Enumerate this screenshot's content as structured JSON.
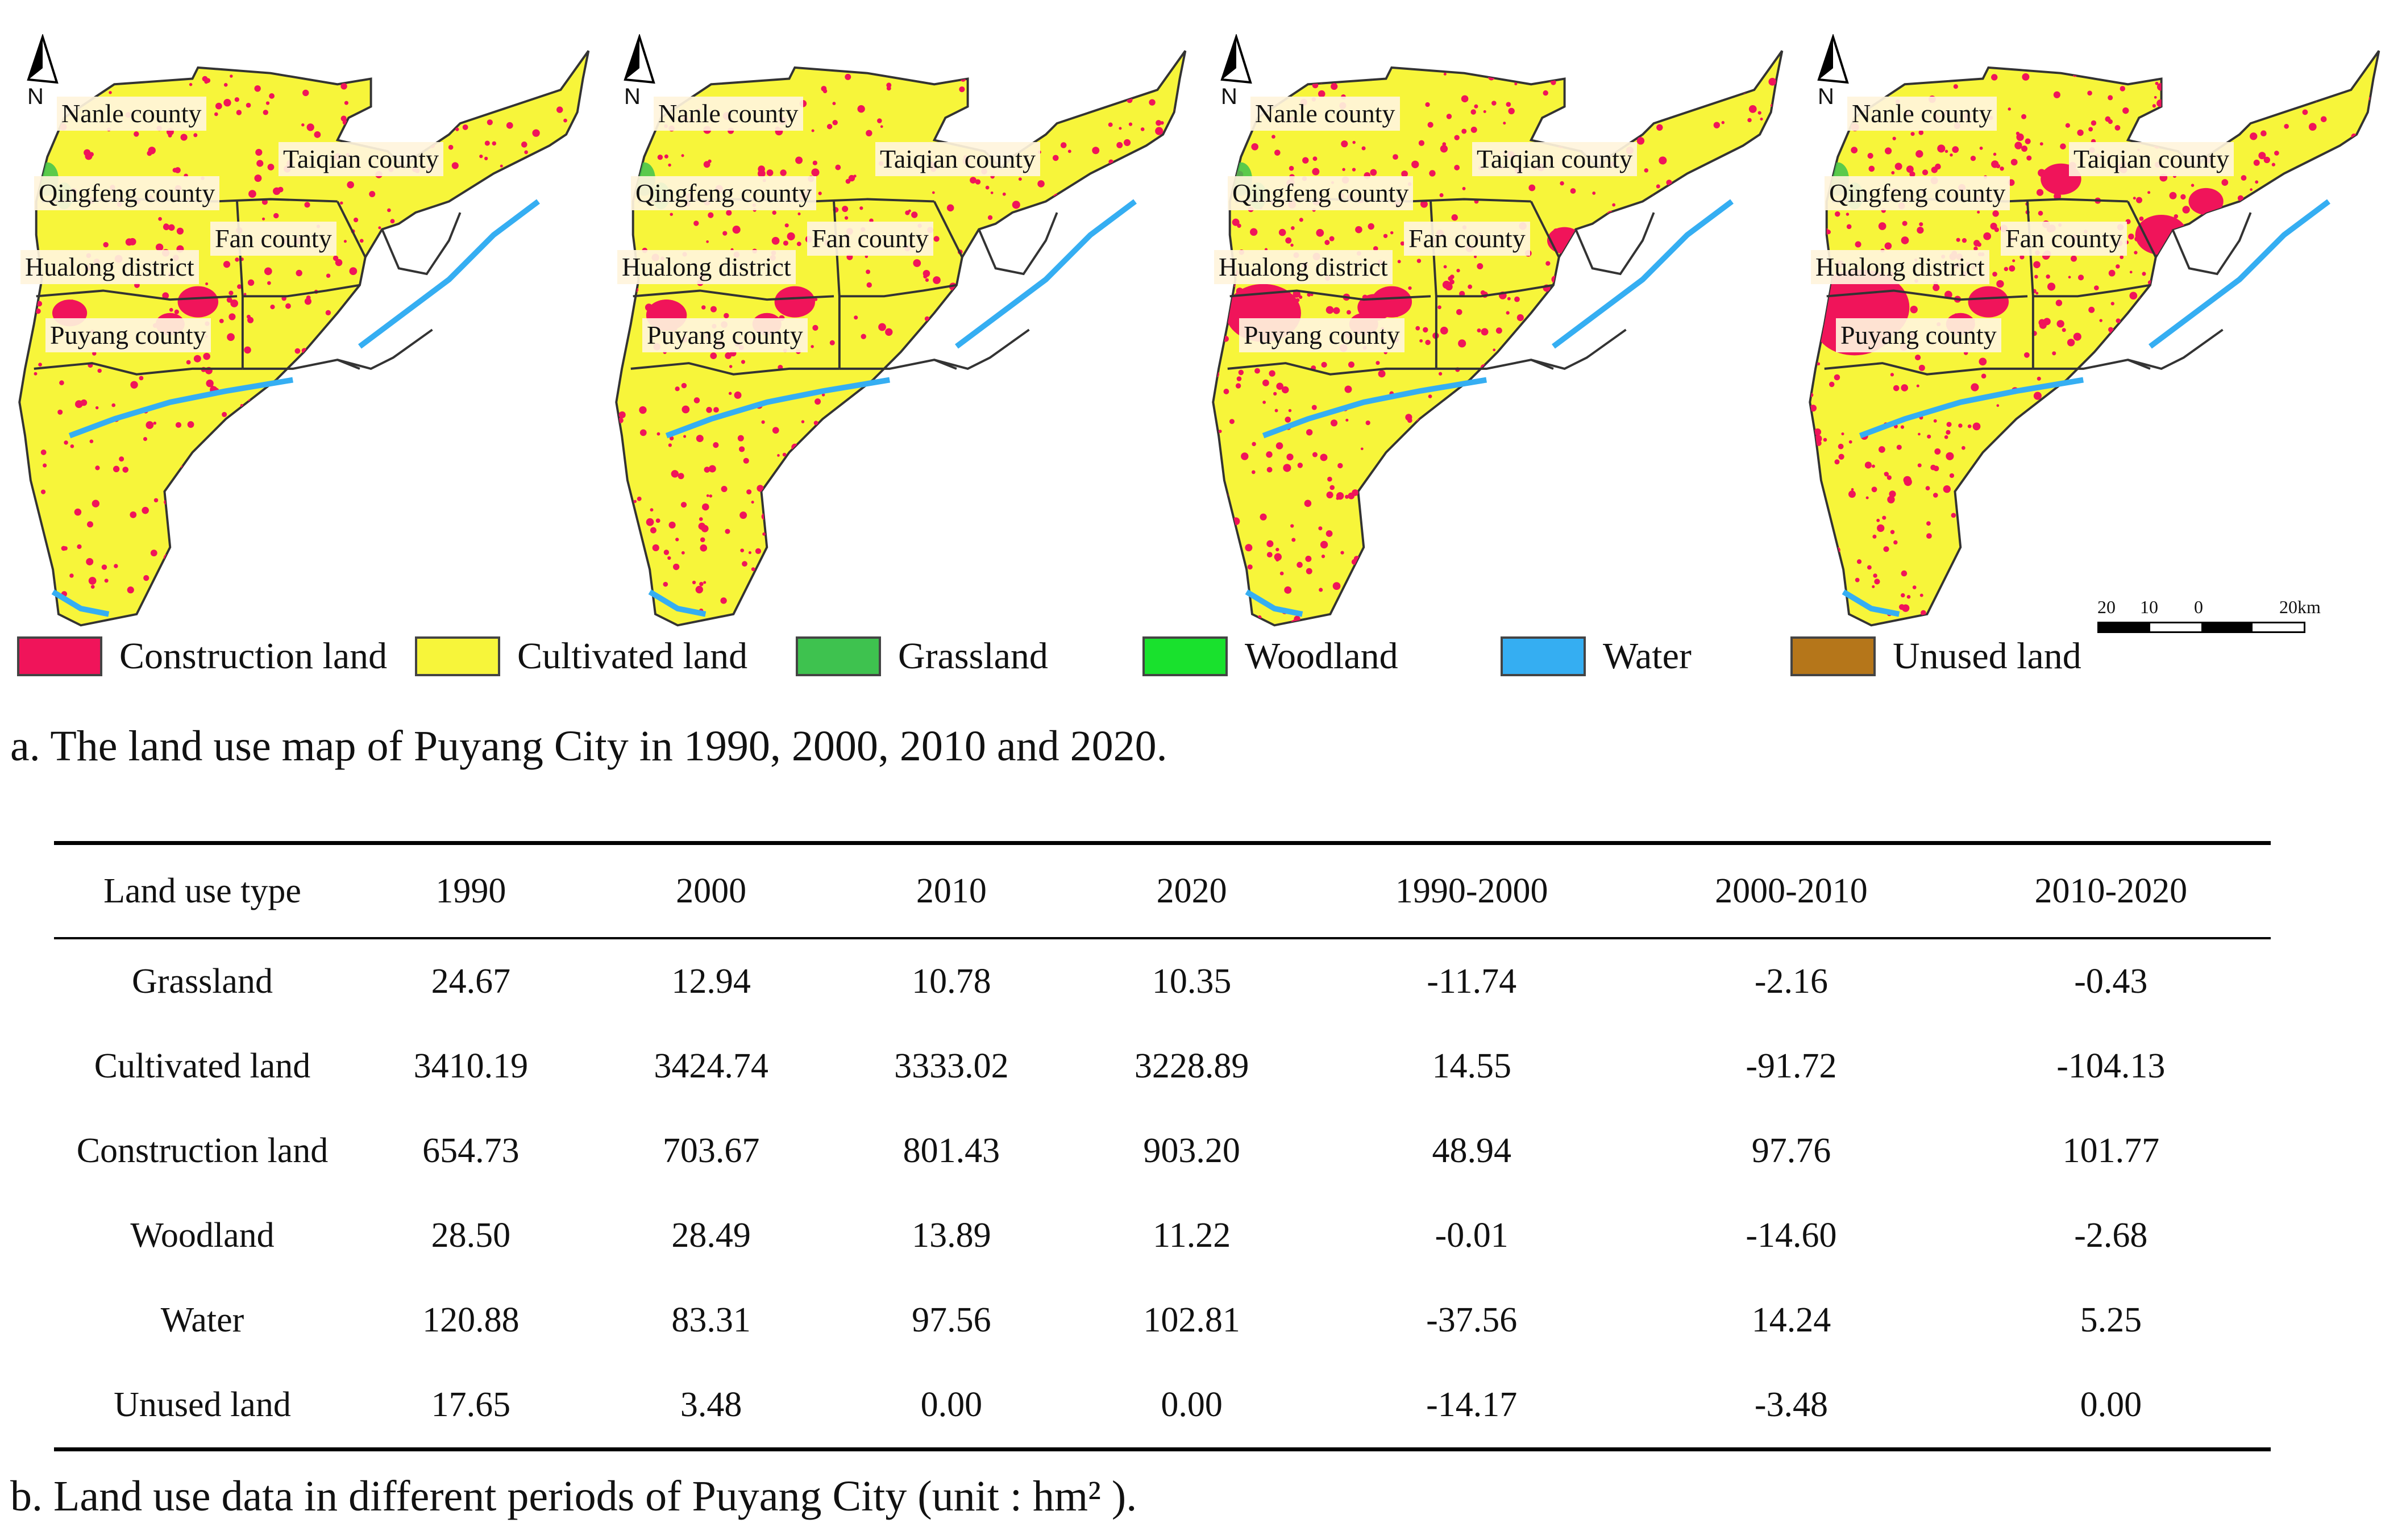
{
  "colors": {
    "construction": "#f0145a",
    "cultivated": "#f7f53a",
    "grassland": "#3ec24f",
    "woodland": "#19e12d",
    "water": "#35aef2",
    "unused": "#b5761a",
    "boundary": "#333333",
    "label_bg": "#fff4dc"
  },
  "north_label": "N",
  "maps": [
    {
      "labels": {
        "nanle": "Nanle county",
        "qingfeng": "Qingfeng county",
        "hualong": "Hualong district",
        "puyang": "Puyang county",
        "fan": "Fan county",
        "taiqian": "Taiqian county"
      }
    },
    {
      "labels": {
        "nanle": "Nanle county",
        "qingfeng": "Qingfeng county",
        "hualong": "Hualong district",
        "puyang": "Puyang county",
        "fan": "Fan county",
        "taiqian": "Taiqian county"
      }
    },
    {
      "labels": {
        "nanle": "Nanle county",
        "qingfeng": "Qingfeng county",
        "hualong": "Hualong district",
        "puyang": "Puyang county",
        "fan": "Fan county",
        "taiqian": "Taiqian county"
      }
    },
    {
      "labels": {
        "nanle": "Nanle county",
        "qingfeng": "Qingfeng county",
        "hualong": "Hualong district",
        "puyang": "Puyang county",
        "fan": "Fan county",
        "taiqian": "Taiqian county"
      }
    }
  ],
  "scale_bar": {
    "ticks": [
      "20",
      "10",
      "0",
      "20km"
    ]
  },
  "legend": [
    {
      "label": "Construction land",
      "color": "#f0145a"
    },
    {
      "label": "Cultivated land",
      "color": "#f7f53a"
    },
    {
      "label": "Grassland",
      "color": "#3ec24f"
    },
    {
      "label": "Woodland",
      "color": "#19e12d"
    },
    {
      "label": "Water",
      "color": "#35aef2"
    },
    {
      "label": "Unused land",
      "color": "#b5761a"
    }
  ],
  "captions": {
    "a": "a. The land use map of Puyang City in 1990, 2000, 2010 and 2020.",
    "b": "b. Land use data in different periods of Puyang City (unit : hm² )."
  },
  "table": {
    "headers": [
      "Land use type",
      "1990",
      "2000",
      "2010",
      "2020",
      "1990-2000",
      "2000-2010",
      "2010-2020"
    ],
    "rows": [
      [
        "Grassland",
        "24.67",
        "12.94",
        "10.78",
        "10.35",
        "-11.74",
        "-2.16",
        "-0.43"
      ],
      [
        "Cultivated land",
        "3410.19",
        "3424.74",
        "3333.02",
        "3228.89",
        "14.55",
        "-91.72",
        "-104.13"
      ],
      [
        "Construction land",
        "654.73",
        "703.67",
        "801.43",
        "903.20",
        "48.94",
        "97.76",
        "101.77"
      ],
      [
        "Woodland",
        "28.50",
        "28.49",
        "13.89",
        "11.22",
        "-0.01",
        "-14.60",
        "-2.68"
      ],
      [
        "Water",
        "120.88",
        "83.31",
        "97.56",
        "102.81",
        "-37.56",
        "14.24",
        "5.25"
      ],
      [
        "Unused land",
        "17.65",
        "3.48",
        "0.00",
        "0.00",
        "-14.17",
        "-3.48",
        "0.00"
      ]
    ]
  }
}
